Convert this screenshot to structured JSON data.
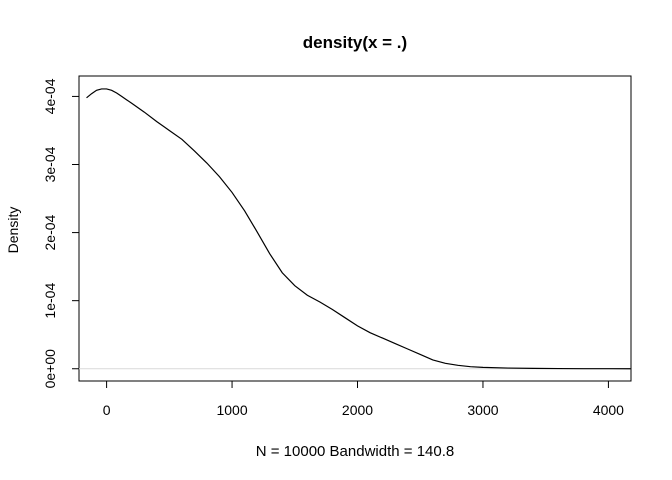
{
  "chart_data": {
    "type": "line",
    "title": "density(x = .)",
    "xlabel": "N = 10000   Bandwidth = 140.8",
    "ylabel": "Density",
    "xlim": [
      -220,
      4180
    ],
    "ylim": [
      -1.8e-05,
      0.00043
    ],
    "x_ticks": [
      0,
      1000,
      2000,
      3000,
      4000
    ],
    "x_tick_labels": [
      "0",
      "1000",
      "2000",
      "3000",
      "4000"
    ],
    "y_ticks": [
      0,
      0.0001,
      0.0002,
      0.0003,
      0.0004
    ],
    "y_tick_labels": [
      "0e+00",
      "1e-04",
      "2e-04",
      "3e-04",
      "4e-04"
    ],
    "baseline": 0,
    "series": [
      {
        "x": [
          -160,
          -120,
          -80,
          -40,
          0,
          40,
          80,
          120,
          160,
          200,
          300,
          400,
          500,
          600,
          700,
          800,
          900,
          1000,
          1100,
          1200,
          1300,
          1400,
          1500,
          1600,
          1700,
          1800,
          1900,
          2000,
          2100,
          2200,
          2300,
          2400,
          2500,
          2600,
          2700,
          2800,
          2900,
          3000,
          3200,
          3400,
          3600,
          3800,
          4000,
          4180
        ],
        "y": [
          0.000398,
          0.000404,
          0.000409,
          0.000411,
          0.000411,
          0.000409,
          0.000405,
          0.0004,
          0.000395,
          0.00039,
          0.000377,
          0.000363,
          0.00035,
          0.000337,
          0.00032,
          0.000302,
          0.000282,
          0.000259,
          0.000232,
          0.000201,
          0.000169,
          0.000141,
          0.000122,
          0.000108,
          9.8e-05,
          8.7e-05,
          7.5e-05,
          6.3e-05,
          5.3e-05,
          4.5e-05,
          3.7e-05,
          2.9e-05,
          2.1e-05,
          1.3e-05,
          8e-06,
          5e-06,
          3e-06,
          2e-06,
          1e-06,
          6e-07,
          3e-07,
          1e-07,
          5e-08,
          2e-08
        ]
      }
    ]
  }
}
